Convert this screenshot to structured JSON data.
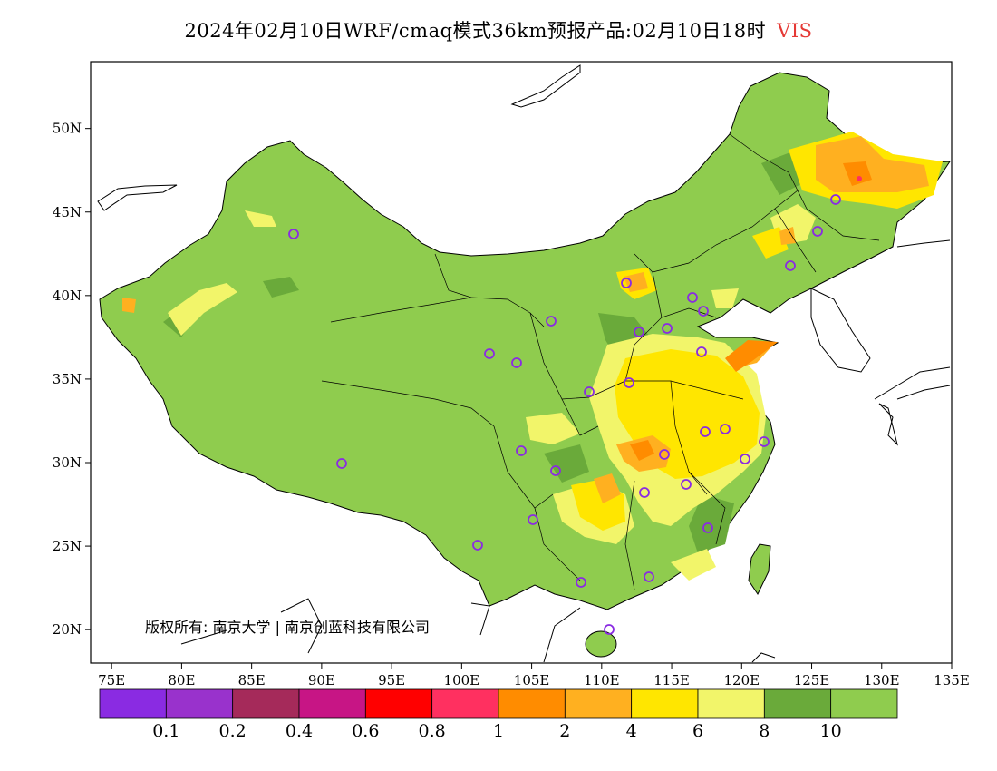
{
  "title": {
    "main": "2024年02月10日WRF/cmaq模式36km预报产品:02月10日18时",
    "variable": "VIS",
    "variable_color": "#e53935"
  },
  "map": {
    "lon_range": [
      73.5,
      135
    ],
    "lat_range": [
      18,
      54
    ],
    "background_fill": "#8fcc4e",
    "x_ticks": [
      "75E",
      "80E",
      "85E",
      "90E",
      "95E",
      "100E",
      "105E",
      "110E",
      "115E",
      "120E",
      "125E",
      "130E",
      "135E"
    ],
    "y_ticks": [
      "50N",
      "45N",
      "40N",
      "35N",
      "30N",
      "25N",
      "20N"
    ],
    "copyright": "版权所有: 南京大学 | 南京创蓝科技有限公司",
    "station_marker_color": "#8a2be2"
  },
  "legend": {
    "colors": [
      "#8a2be2",
      "#9932cc",
      "#a52a5a",
      "#c71585",
      "#ff0000",
      "#ff3060",
      "#ff8c00",
      "#ffb020",
      "#ffe600",
      "#f2f56a",
      "#6aaa3a",
      "#8fcc4e"
    ],
    "levels": [
      "0.1",
      "0.2",
      "0.4",
      "0.6",
      "0.8",
      "1",
      "2",
      "4",
      "6",
      "8",
      "10"
    ]
  }
}
